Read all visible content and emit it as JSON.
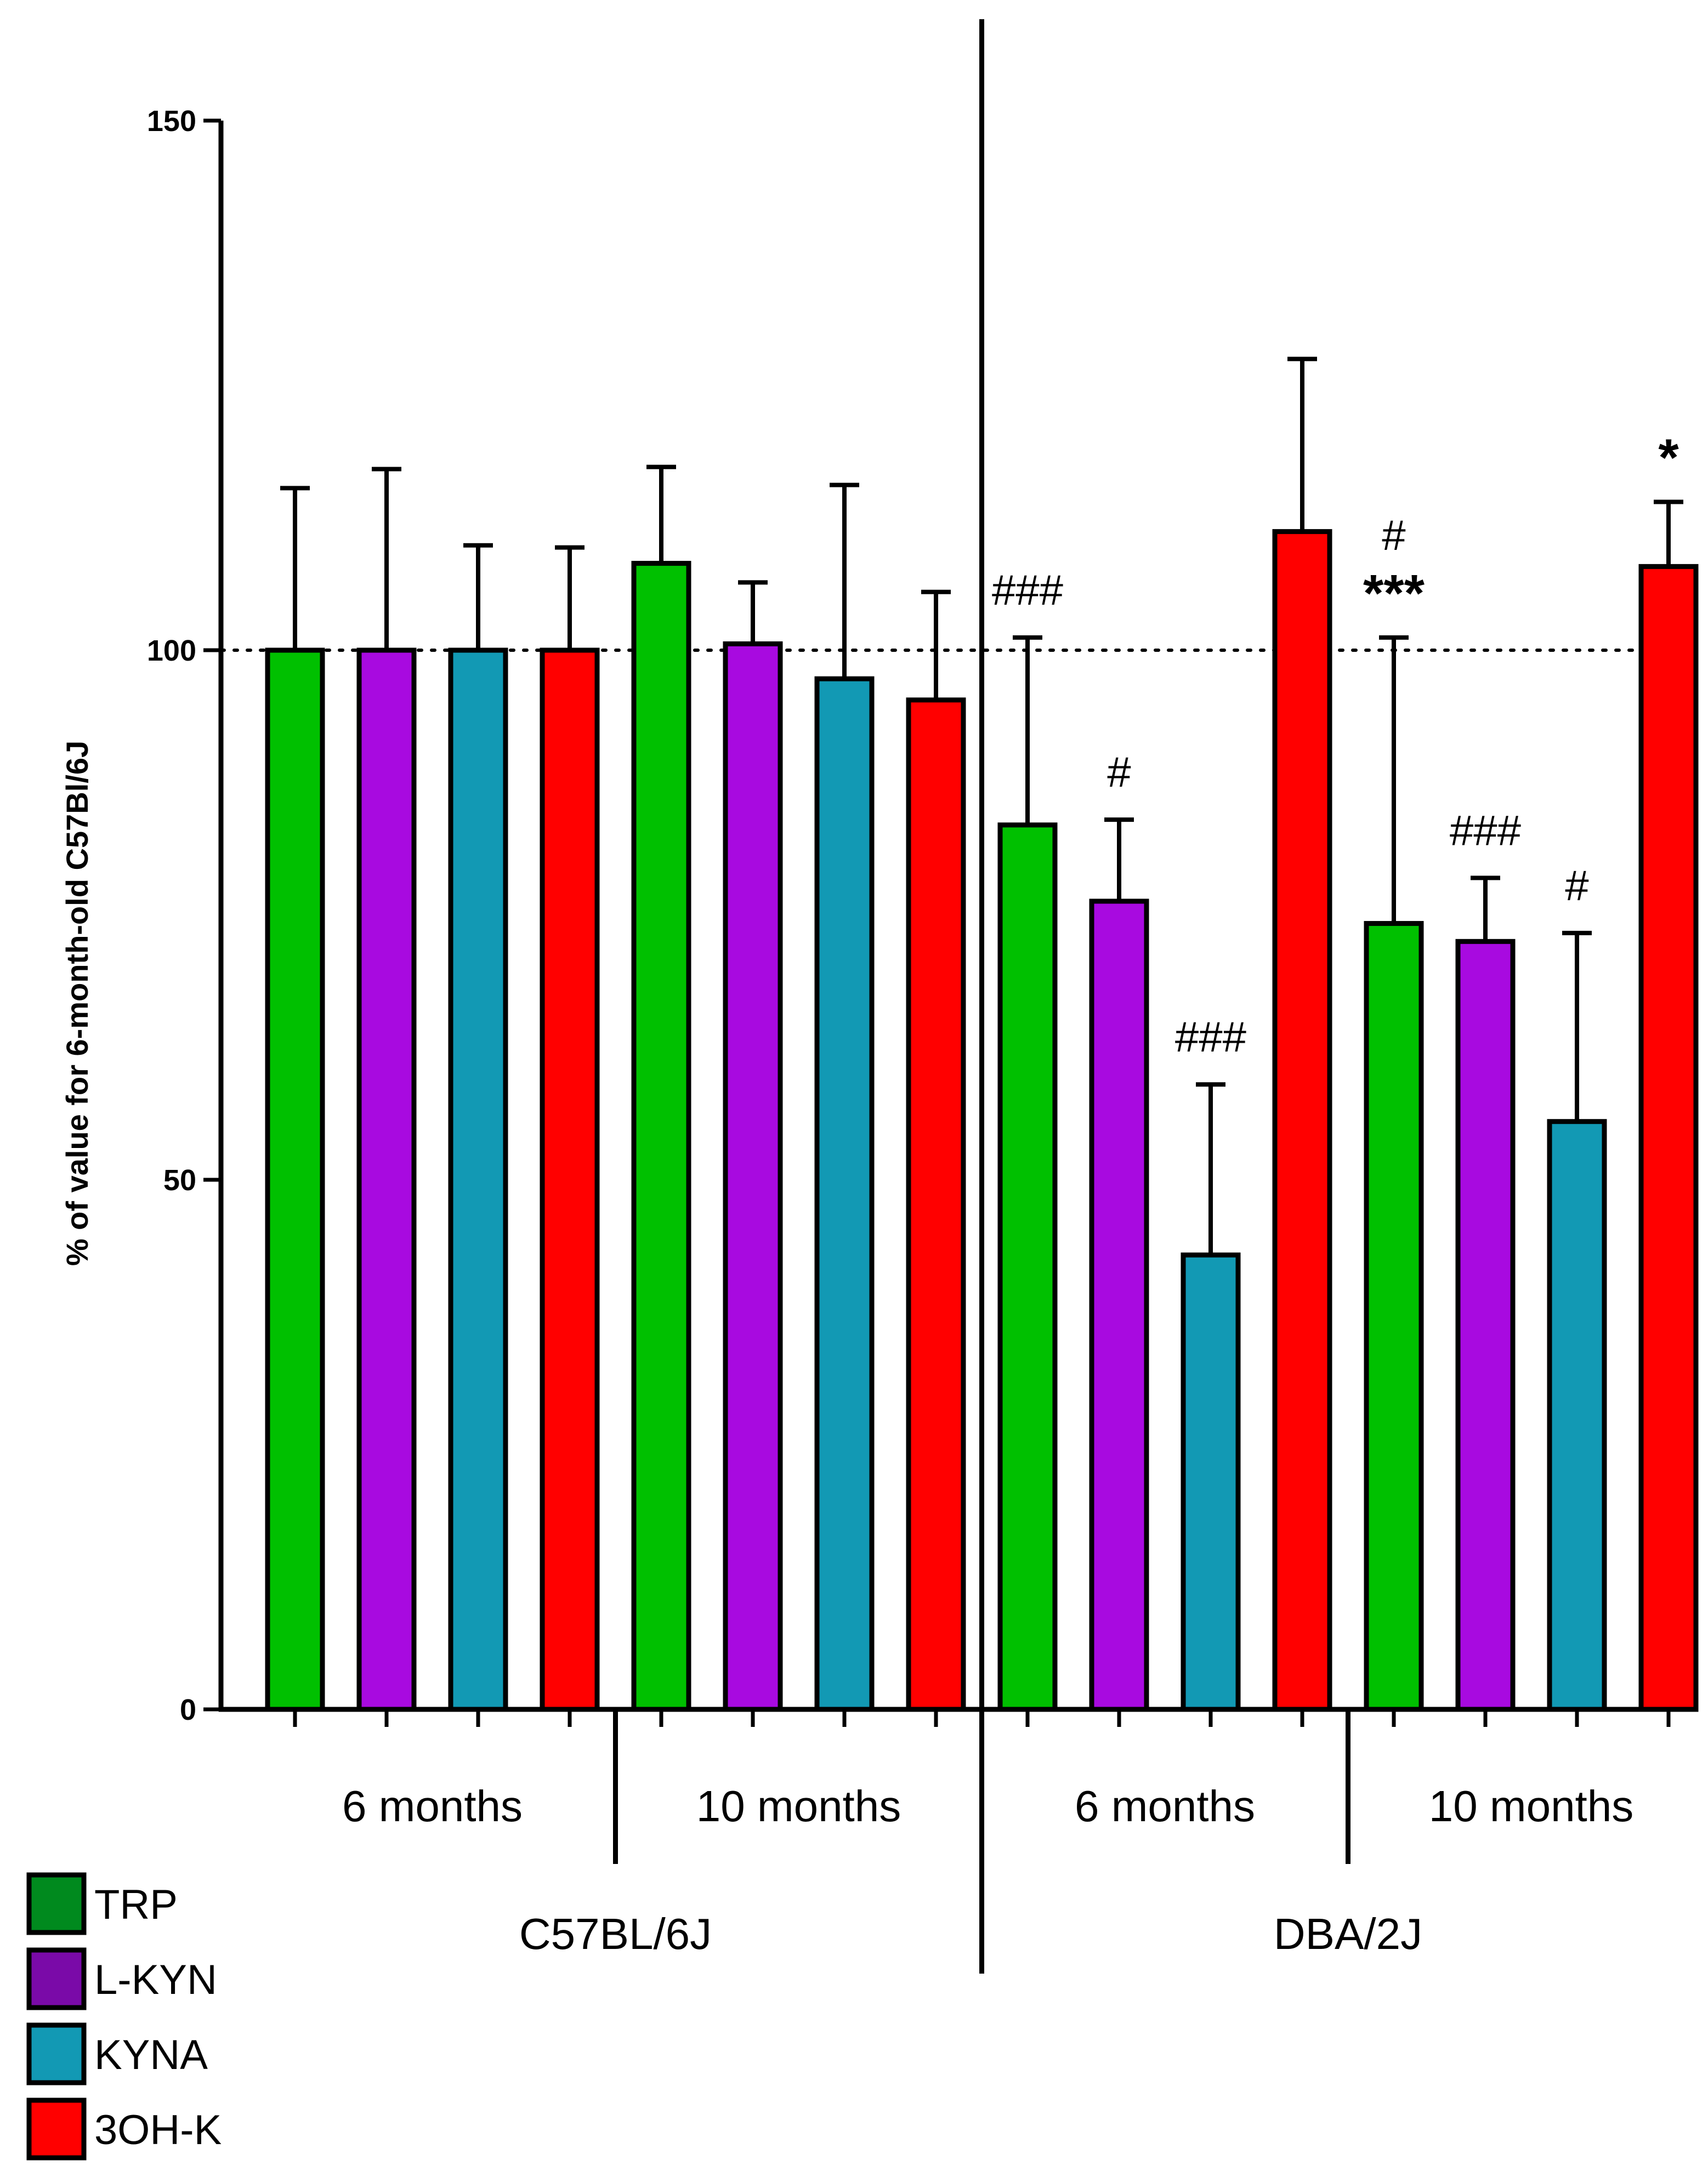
{
  "chart_data": {
    "type": "bar",
    "title": "",
    "xlabel": "",
    "ylabel": "% of value for 6-month-old C57Bl/6J",
    "ylim": [
      0,
      150
    ],
    "yticks": [
      0,
      50,
      100,
      150
    ],
    "reference_line": 100,
    "series_names": [
      "TRP",
      "L-KYN",
      "KYNA",
      "3OH-K"
    ],
    "colors": {
      "TRP": "#00c000",
      "L-KYN": "#a80ae0",
      "KYNA": "#1299b4",
      "3OH-K": "#ff0000"
    },
    "legend_colors": {
      "TRP": "#008a1e",
      "L-KYN": "#7a0aa8",
      "KYNA": "#1299b4",
      "3OH-K": "#ff0000"
    },
    "groups": [
      {
        "strain": "C57BL/6J",
        "ages": [
          {
            "age": "6 months",
            "bars": [
              {
                "series": "TRP",
                "value": 100,
                "error": 15.3,
                "annotation": ""
              },
              {
                "series": "L-KYN",
                "value": 100,
                "error": 17.1,
                "annotation": ""
              },
              {
                "series": "KYNA",
                "value": 100,
                "error": 9.9,
                "annotation": ""
              },
              {
                "series": "3OH-K",
                "value": 100,
                "error": 9.7,
                "annotation": ""
              }
            ]
          },
          {
            "age": "10 months",
            "bars": [
              {
                "series": "TRP",
                "value": 108.2,
                "error": 9.1,
                "annotation": ""
              },
              {
                "series": "L-KYN",
                "value": 100.6,
                "error": 5.8,
                "annotation": ""
              },
              {
                "series": "KYNA",
                "value": 97.3,
                "error": 18.3,
                "annotation": ""
              },
              {
                "series": "3OH-K",
                "value": 95.3,
                "error": 10.2,
                "annotation": ""
              }
            ]
          }
        ]
      },
      {
        "strain": "DBA/2J",
        "ages": [
          {
            "age": "6 months",
            "bars": [
              {
                "series": "TRP",
                "value": 83.5,
                "error": 17.7,
                "annotation": "###"
              },
              {
                "series": "L-KYN",
                "value": 76.3,
                "error": 7.7,
                "annotation": "#"
              },
              {
                "series": "KYNA",
                "value": 42.9,
                "error": 16.1,
                "annotation": "###"
              },
              {
                "series": "3OH-K",
                "value": 111.2,
                "error": 16.3,
                "annotation": ""
              }
            ]
          },
          {
            "age": "10 months",
            "bars": [
              {
                "series": "TRP",
                "value": 74.2,
                "error": 27.0,
                "annotation": "***",
                "annotation_top": "#"
              },
              {
                "series": "L-KYN",
                "value": 72.5,
                "error": 6.0,
                "annotation": "###"
              },
              {
                "series": "KYNA",
                "value": 55.5,
                "error": 17.8,
                "annotation": "#"
              },
              {
                "series": "3OH-K",
                "value": 107.9,
                "error": 6.1,
                "annotation": "*"
              }
            ]
          }
        ]
      }
    ],
    "legend": [
      {
        "label": "TRP"
      },
      {
        "label": "L-KYN"
      },
      {
        "label": "KYNA"
      },
      {
        "label": "3OH-K"
      }
    ],
    "legend_position": "bottom-left"
  }
}
